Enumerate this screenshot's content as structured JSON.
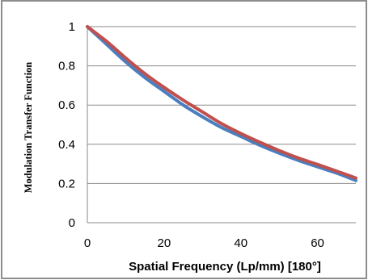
{
  "chart_data": {
    "type": "line",
    "title": "",
    "xlabel": "Spatial Frequency (Lp/mm) [180°]",
    "ylabel": "Modulation Transfer Function",
    "xlim": [
      0,
      70
    ],
    "ylim": [
      0,
      1
    ],
    "x_ticks": [
      "0",
      "20",
      "40",
      "60"
    ],
    "y_ticks": [
      "0",
      "0.2",
      "0.4",
      "0.6",
      "0.8",
      "1"
    ],
    "grid": "horizontal",
    "legend": "none",
    "series": [
      {
        "color": "#4a7ebf",
        "x": [
          0,
          5,
          10,
          15,
          20,
          25,
          30,
          35,
          40,
          45,
          50,
          55,
          60,
          65,
          70
        ],
        "y": [
          1.0,
          0.91,
          0.82,
          0.74,
          0.67,
          0.6,
          0.54,
          0.485,
          0.44,
          0.395,
          0.355,
          0.318,
          0.285,
          0.253,
          0.215
        ]
      },
      {
        "color": "#c0504d",
        "x": [
          0,
          5,
          10,
          15,
          20,
          25,
          30,
          35,
          40,
          45,
          50,
          55,
          60,
          65,
          70
        ],
        "y": [
          1.0,
          0.925,
          0.84,
          0.76,
          0.69,
          0.625,
          0.565,
          0.505,
          0.455,
          0.41,
          0.368,
          0.33,
          0.297,
          0.263,
          0.228
        ]
      }
    ]
  }
}
